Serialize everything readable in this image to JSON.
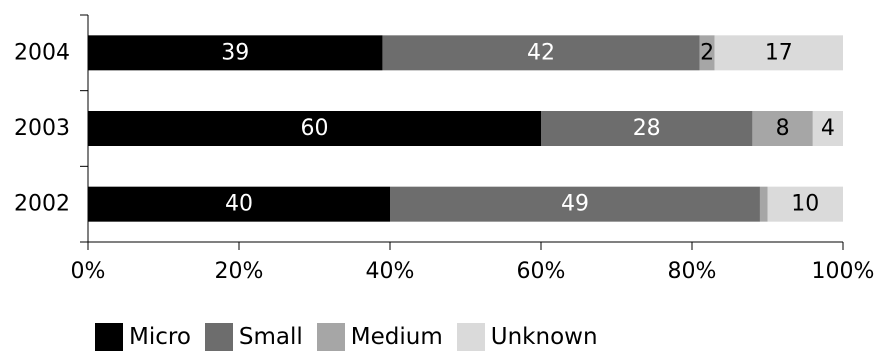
{
  "chart_data": {
    "type": "bar",
    "orientation": "horizontal",
    "stacked": "percent",
    "categories": [
      "2004",
      "2003",
      "2002"
    ],
    "series": [
      {
        "name": "Micro",
        "color": "#000000",
        "label_color": "#ffffff",
        "values": [
          39,
          60,
          40
        ]
      },
      {
        "name": "Small",
        "color": "#6d6d6d",
        "label_color": "#ffffff",
        "values": [
          42,
          28,
          49
        ]
      },
      {
        "name": "Medium",
        "color": "#a6a6a6",
        "label_color": "#000000",
        "values": [
          2,
          8,
          1
        ]
      },
      {
        "name": "Unknown",
        "color": "#dadada",
        "label_color": "#000000",
        "values": [
          17,
          4,
          10
        ]
      }
    ],
    "data_labels": [
      [
        "39",
        "42",
        "2",
        "17"
      ],
      [
        "60",
        "28",
        "8",
        "4"
      ],
      [
        "40",
        "49",
        "",
        "10"
      ]
    ],
    "xlim": [
      0,
      100
    ],
    "xticks": [
      "0%",
      "20%",
      "40%",
      "60%",
      "80%",
      "100%"
    ],
    "grid": false,
    "legend_position": "bottom-left"
  }
}
